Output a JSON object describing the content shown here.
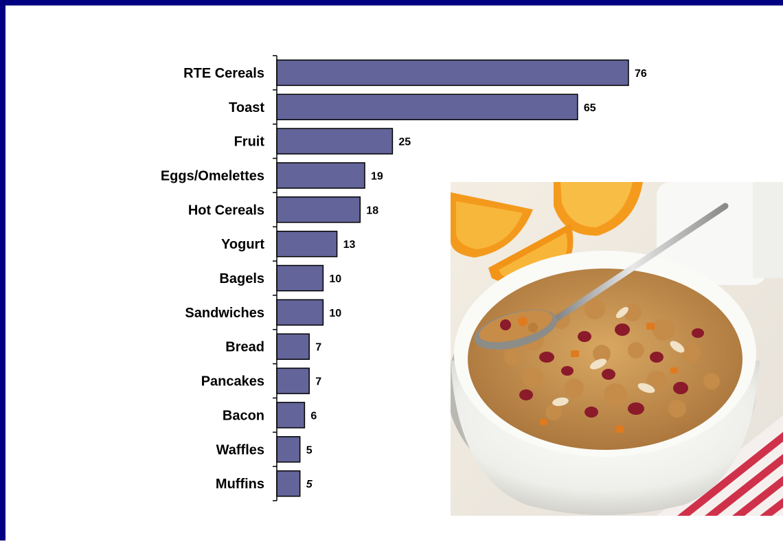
{
  "chart_data": {
    "type": "bar",
    "orientation": "horizontal",
    "categories": [
      "RTE Cereals",
      "Toast",
      "Fruit",
      "Eggs/Omelettes",
      "Hot Cereals",
      "Yogurt",
      "Bagels",
      "Sandwiches",
      "Bread",
      "Pancakes",
      "Bacon",
      "Waffles",
      "Muffins"
    ],
    "values": [
      76,
      65,
      25,
      19,
      18,
      13,
      10,
      10,
      7,
      7,
      6,
      5,
      5
    ],
    "data_labels": [
      "76",
      "65",
      "25",
      "19",
      "18",
      "13",
      "10",
      "10",
      "7",
      "7",
      "6",
      "5",
      "5"
    ],
    "xlim": [
      0,
      80
    ],
    "grid": false,
    "legend": "none",
    "bar_color": "#63649A",
    "bar_edge_color": "#000000"
  },
  "frame": {
    "border_color": "#000080"
  },
  "photo": {
    "subject": "bowl of granola cereal with dried fruit, orange slices and a spoon"
  }
}
